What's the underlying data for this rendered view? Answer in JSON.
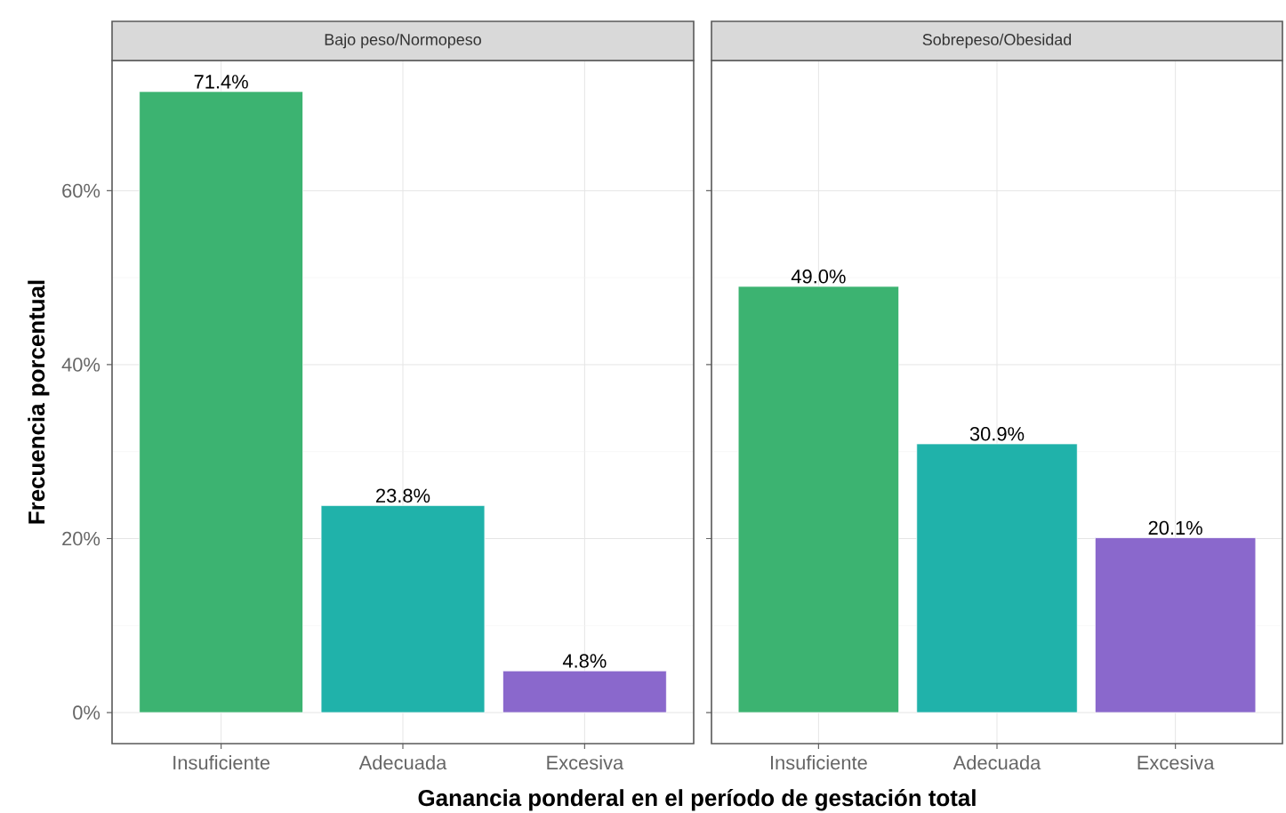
{
  "chart_data": [
    {
      "type": "bar",
      "title": "Bajo peso/Normopeso",
      "xlabel": "Ganancia ponderal en el período de gestación total",
      "ylabel": "Frecuencia porcentual",
      "categories": [
        "Insuficiente",
        "Adecuada",
        "Excesiva"
      ],
      "values": [
        71.4,
        23.8,
        4.8
      ],
      "colors": [
        "#3cb371",
        "#20b2aa",
        "#8a68cc"
      ],
      "value_labels": [
        "71.4%",
        "23.8%",
        "4.8%"
      ],
      "ylim": [
        -3.57,
        74.97
      ],
      "yticks": [
        {
          "value": 0,
          "label": "0%"
        },
        {
          "value": 20,
          "label": "20%"
        },
        {
          "value": 40,
          "label": "40%"
        },
        {
          "value": 60,
          "label": "60%"
        }
      ],
      "grid": true
    },
    {
      "type": "bar",
      "title": "Sobrepeso/Obesidad",
      "categories": [
        "Insuficiente",
        "Adecuada",
        "Excesiva"
      ],
      "values": [
        49.0,
        30.9,
        20.1
      ],
      "colors": [
        "#3cb371",
        "#20b2aa",
        "#8a68cc"
      ],
      "value_labels": [
        "49.0%",
        "30.9%",
        "20.1%"
      ],
      "ylim": [
        -3.57,
        74.97
      ],
      "yticks": [
        {
          "value": 0,
          "label": null
        },
        {
          "value": 20,
          "label": null
        },
        {
          "value": 40,
          "label": null
        },
        {
          "value": 60,
          "label": null
        }
      ],
      "grid": true,
      "tick_labels": "x"
    }
  ]
}
